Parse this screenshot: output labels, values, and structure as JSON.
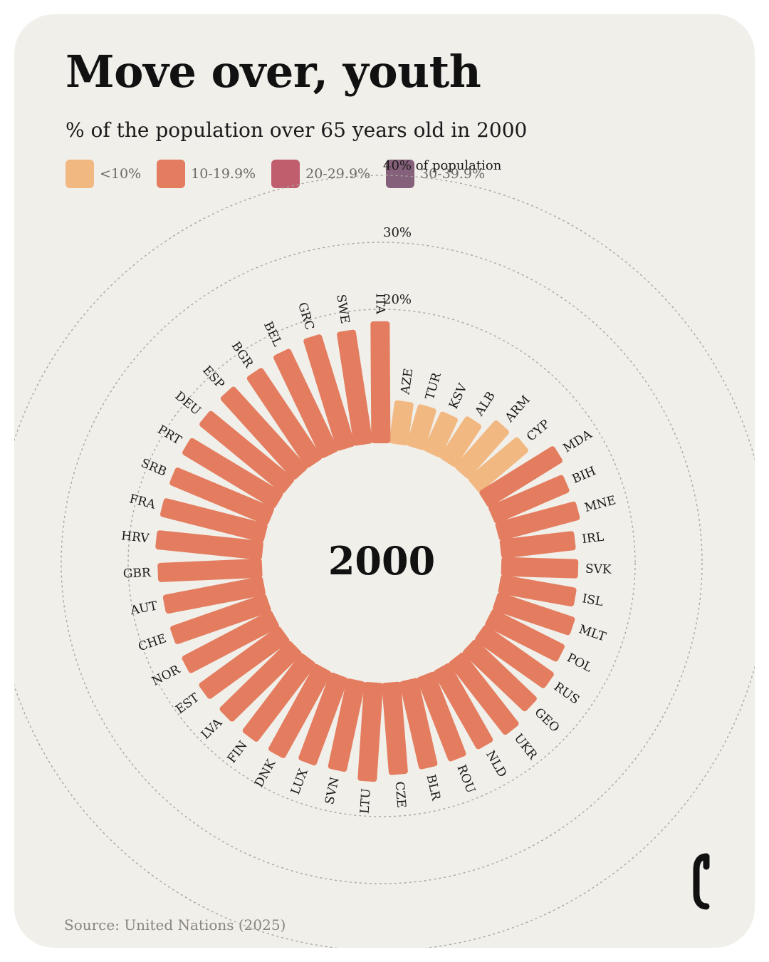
{
  "title": "Move over, youth",
  "subtitle": "% of the population over 65 years old in 2000",
  "legend": [
    {
      "label": "<10%",
      "color": "#f2b882"
    },
    {
      "label": "10-19.9%",
      "color": "#e47d5f"
    },
    {
      "label": "20-29.9%",
      "color": "#c05e6e"
    },
    {
      "label": "30-39.9%",
      "color": "#85607a"
    }
  ],
  "source": "Source: United Nations (2025)",
  "chart_data": {
    "type": "bar",
    "layout": "radial",
    "title": "% of the population over 65 years old in 2000",
    "center_label": "2000",
    "rings": [
      {
        "value": 20,
        "label": "20%"
      },
      {
        "value": 30,
        "label": "30%"
      },
      {
        "value": 40,
        "label": "40% of population"
      }
    ],
    "categories": [
      "AZE",
      "TUR",
      "KSV",
      "ALB",
      "ARM",
      "CYP",
      "MDA",
      "BIH",
      "MNE",
      "IRL",
      "SVK",
      "ISL",
      "MLT",
      "POL",
      "RUS",
      "GEO",
      "UKR",
      "NLD",
      "ROU",
      "BLR",
      "CZE",
      "LTU",
      "SVN",
      "LUX",
      "DNK",
      "FIN",
      "LVA",
      "EST",
      "NOR",
      "CHE",
      "AUT",
      "GBR",
      "HRV",
      "FRA",
      "SRB",
      "PRT",
      "DEU",
      "ESP",
      "BGR",
      "BEL",
      "GRC",
      "SWE",
      "ITA"
    ],
    "values": [
      6.5,
      6.5,
      6.5,
      7.5,
      9.5,
      9.8,
      13.2,
      12.2,
      12.5,
      11.2,
      11.5,
      11.5,
      12.2,
      12.2,
      12.8,
      13.0,
      13.8,
      13.5,
      13.5,
      13.5,
      13.8,
      14.8,
      13.8,
      14.0,
      14.8,
      14.8,
      14.8,
      15.0,
      15.2,
      15.2,
      15.2,
      15.6,
      16.0,
      16.0,
      16.0,
      16.2,
      16.4,
      16.6,
      16.4,
      17.0,
      17.5,
      17.2,
      18.2
    ],
    "ylim": [
      0,
      40
    ]
  }
}
